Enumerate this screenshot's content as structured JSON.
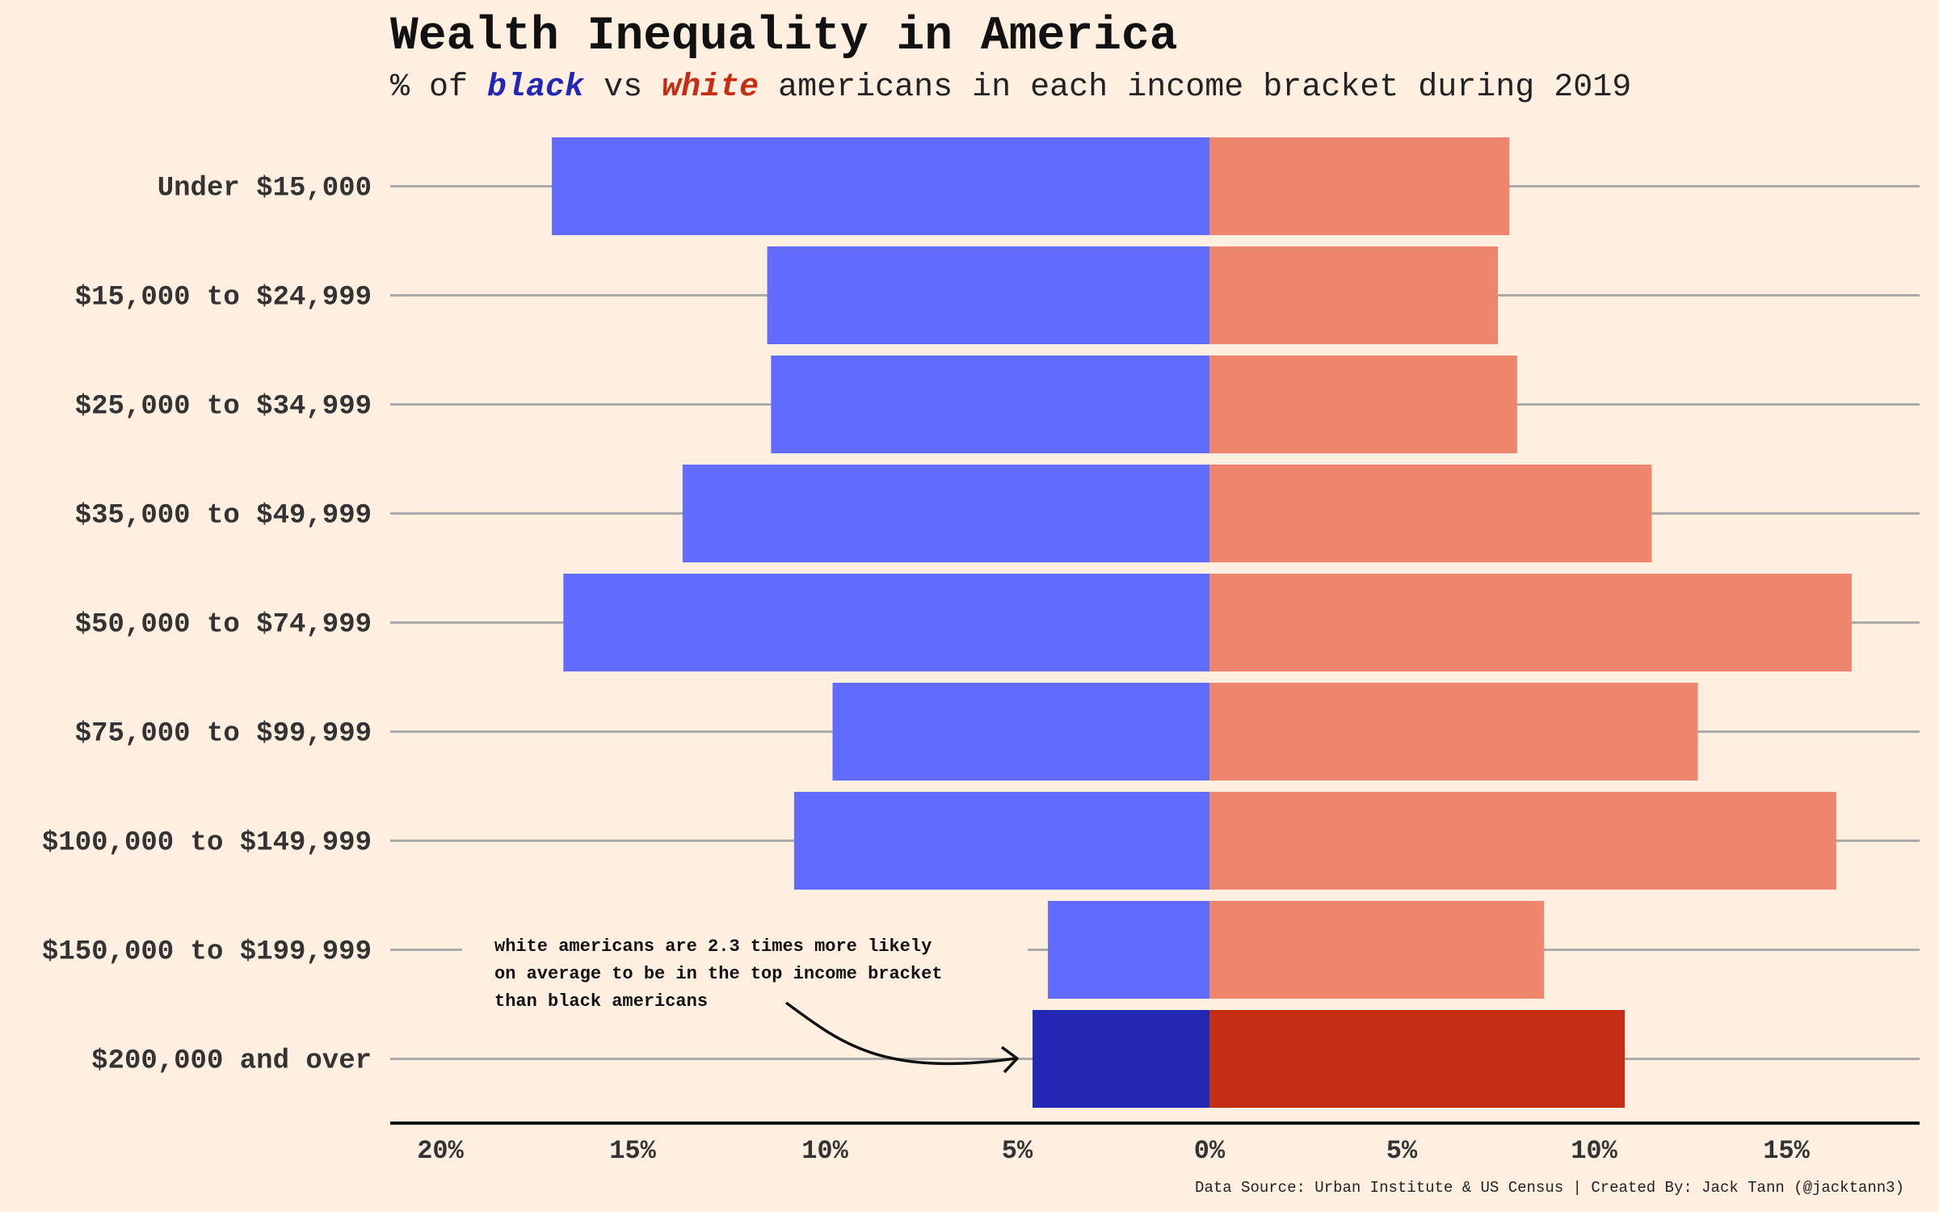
{
  "chart_data": {
    "type": "bar",
    "title": "Wealth Inequality in America",
    "subtitle": {
      "prefix": "% of ",
      "black_word": "black",
      "middle": " vs ",
      "white_word": "white",
      "suffix": " americans in each income bracket during 2019"
    },
    "categories": [
      "Under $15,000",
      "$15,000 to $24,999",
      "$25,000 to $34,999",
      "$35,000 to $49,999",
      "$50,000 to $74,999",
      "$75,000 to $99,999",
      "$100,000 to $149,999",
      "$150,000 to $199,999",
      "$200,000 and over"
    ],
    "series": [
      {
        "name": "black",
        "side": "left",
        "values": [
          17.1,
          11.5,
          11.4,
          13.7,
          16.8,
          9.8,
          10.8,
          4.2,
          4.6
        ]
      },
      {
        "name": "white",
        "side": "right",
        "values": [
          7.8,
          7.5,
          8.0,
          11.5,
          16.7,
          12.7,
          16.3,
          8.7,
          10.8
        ]
      }
    ],
    "highlight_category": "$200,000 and over",
    "x_ticks": [
      "20%",
      "15%",
      "10%",
      "5%",
      "0%",
      "5%",
      "10%",
      "15%"
    ],
    "xlim": [
      -21,
      18.5
    ],
    "grid": "horizontal",
    "annotation": [
      "white americans are 2.3 times more likely",
      "on average to be in the top income bracket",
      "than black americans"
    ],
    "caption": "Data Source: Urban Institute & US Census | Created By: Jack Tann (@jacktann3)",
    "colors": {
      "background": "#FFEFE1",
      "black": "#616CFE",
      "black_highlight": "#2228B4",
      "white": "#EE866D",
      "white_highlight": "#C52D14",
      "grid": "#ABABAB",
      "axis": "#111111"
    }
  }
}
